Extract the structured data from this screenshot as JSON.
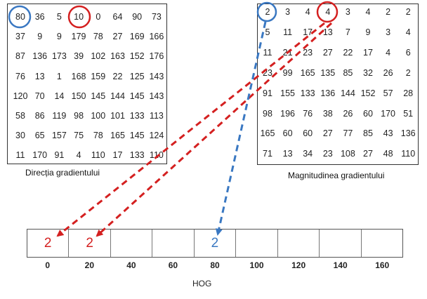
{
  "direction_matrix": {
    "caption": "Direcția gradientului",
    "rows": [
      [
        80,
        36,
        5,
        10,
        0,
        64,
        90,
        73
      ],
      [
        37,
        9,
        9,
        179,
        78,
        27,
        169,
        166
      ],
      [
        87,
        136,
        173,
        39,
        102,
        163,
        152,
        176
      ],
      [
        76,
        13,
        1,
        168,
        159,
        22,
        125,
        143
      ],
      [
        120,
        70,
        14,
        150,
        145,
        144,
        145,
        143
      ],
      [
        58,
        86,
        119,
        98,
        100,
        101,
        133,
        113
      ],
      [
        30,
        65,
        157,
        75,
        78,
        165,
        145,
        124
      ],
      [
        11,
        170,
        91,
        4,
        110,
        17,
        133,
        110
      ]
    ]
  },
  "magnitude_matrix": {
    "caption": "Magnitudinea gradientului",
    "rows": [
      [
        2,
        3,
        4,
        4,
        3,
        4,
        2,
        2
      ],
      [
        5,
        11,
        17,
        13,
        7,
        9,
        3,
        4
      ],
      [
        11,
        21,
        23,
        27,
        22,
        17,
        4,
        6
      ],
      [
        23,
        99,
        165,
        135,
        85,
        32,
        26,
        2
      ],
      [
        91,
        155,
        133,
        136,
        144,
        152,
        57,
        28
      ],
      [
        98,
        196,
        76,
        38,
        26,
        60,
        170,
        51
      ],
      [
        165,
        60,
        60,
        27,
        77,
        85,
        43,
        136
      ],
      [
        71,
        13,
        34,
        23,
        108,
        27,
        48,
        110
      ]
    ]
  },
  "hog": {
    "label": "HOG",
    "bins": [
      "0",
      "20",
      "40",
      "60",
      "80",
      "100",
      "120",
      "140",
      "160"
    ],
    "values": [
      "2",
      "2",
      "",
      "",
      "2",
      "",
      "",
      "",
      ""
    ]
  },
  "colors": {
    "red": "#d42020",
    "blue": "#3a78c2"
  }
}
